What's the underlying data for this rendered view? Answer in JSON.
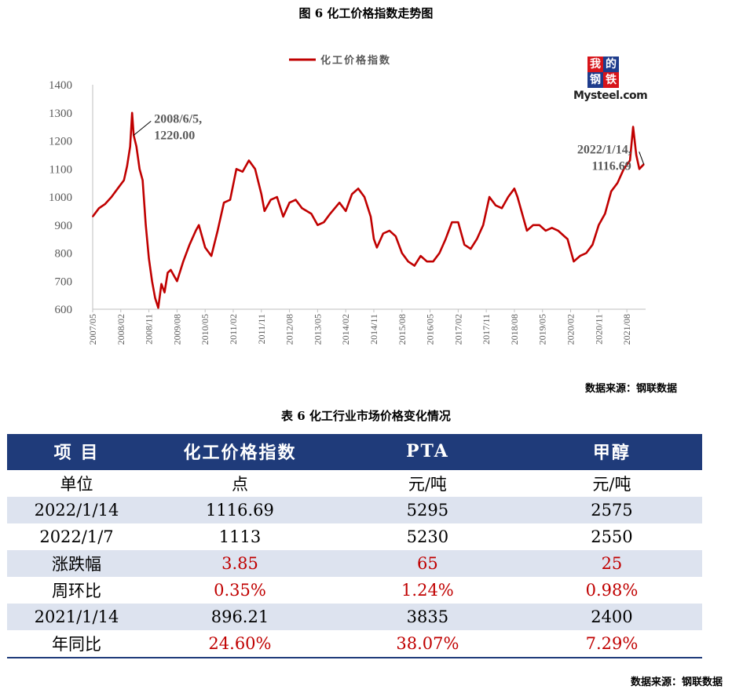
{
  "figure": {
    "title": "图 6 化工价格指数走势图",
    "source": "数据来源：钢联数据",
    "logo": {
      "chars": [
        "我",
        "的",
        "钢",
        "铁"
      ],
      "text": "Mysteel.com",
      "colors": [
        "#d7141a",
        "#1e3c8c"
      ]
    }
  },
  "chart_data": {
    "type": "line",
    "series": [
      {
        "name": "化工价格指数",
        "color": "#c00000",
        "points": [
          [
            "2007-05",
            930
          ],
          [
            "2007-07",
            960
          ],
          [
            "2007-09",
            975
          ],
          [
            "2007-11",
            1000
          ],
          [
            "2008-01",
            1030
          ],
          [
            "2008-03",
            1060
          ],
          [
            "2008-04",
            1110
          ],
          [
            "2008-05",
            1180
          ],
          [
            "2008-05-20",
            1300
          ],
          [
            "2008-06-05",
            1220
          ],
          [
            "2008-07",
            1180
          ],
          [
            "2008-08",
            1100
          ],
          [
            "2008-09",
            1060
          ],
          [
            "2008-10",
            900
          ],
          [
            "2008-11",
            780
          ],
          [
            "2008-12",
            700
          ],
          [
            "2009-01",
            640
          ],
          [
            "2009-02",
            605
          ],
          [
            "2009-03",
            690
          ],
          [
            "2009-04",
            660
          ],
          [
            "2009-05",
            730
          ],
          [
            "2009-06",
            740
          ],
          [
            "2009-07",
            720
          ],
          [
            "2009-08",
            700
          ],
          [
            "2009-10",
            770
          ],
          [
            "2009-12",
            830
          ],
          [
            "2010-02",
            880
          ],
          [
            "2010-03",
            900
          ],
          [
            "2010-05",
            820
          ],
          [
            "2010-07",
            790
          ],
          [
            "2010-09",
            880
          ],
          [
            "2010-11",
            980
          ],
          [
            "2011-01",
            990
          ],
          [
            "2011-03",
            1100
          ],
          [
            "2011-05",
            1090
          ],
          [
            "2011-07",
            1130
          ],
          [
            "2011-09",
            1100
          ],
          [
            "2011-11",
            1010
          ],
          [
            "2011-12",
            950
          ],
          [
            "2012-02",
            990
          ],
          [
            "2012-04",
            1000
          ],
          [
            "2012-06",
            930
          ],
          [
            "2012-08",
            980
          ],
          [
            "2012-10",
            990
          ],
          [
            "2012-12",
            960
          ],
          [
            "2013-03",
            940
          ],
          [
            "2013-05",
            900
          ],
          [
            "2013-07",
            910
          ],
          [
            "2013-09",
            940
          ],
          [
            "2013-12",
            980
          ],
          [
            "2014-02",
            950
          ],
          [
            "2014-04",
            1010
          ],
          [
            "2014-06",
            1030
          ],
          [
            "2014-08",
            1000
          ],
          [
            "2014-10",
            930
          ],
          [
            "2014-11",
            850
          ],
          [
            "2014-12",
            820
          ],
          [
            "2015-02",
            870
          ],
          [
            "2015-04",
            880
          ],
          [
            "2015-06",
            860
          ],
          [
            "2015-08",
            800
          ],
          [
            "2015-10",
            770
          ],
          [
            "2015-12",
            755
          ],
          [
            "2016-02",
            790
          ],
          [
            "2016-04",
            770
          ],
          [
            "2016-06",
            770
          ],
          [
            "2016-08",
            800
          ],
          [
            "2016-10",
            850
          ],
          [
            "2016-12",
            910
          ],
          [
            "2017-02",
            910
          ],
          [
            "2017-04",
            830
          ],
          [
            "2017-06",
            815
          ],
          [
            "2017-08",
            850
          ],
          [
            "2017-10",
            900
          ],
          [
            "2017-12",
            1000
          ],
          [
            "2018-02",
            970
          ],
          [
            "2018-04",
            960
          ],
          [
            "2018-06",
            1000
          ],
          [
            "2018-08",
            1030
          ],
          [
            "2018-09",
            1000
          ],
          [
            "2018-11",
            920
          ],
          [
            "2018-12",
            880
          ],
          [
            "2019-02",
            900
          ],
          [
            "2019-04",
            900
          ],
          [
            "2019-06",
            880
          ],
          [
            "2019-08",
            890
          ],
          [
            "2019-10",
            880
          ],
          [
            "2019-12",
            860
          ],
          [
            "2020-01",
            850
          ],
          [
            "2020-03",
            770
          ],
          [
            "2020-05",
            790
          ],
          [
            "2020-07",
            800
          ],
          [
            "2020-09",
            830
          ],
          [
            "2020-11",
            900
          ],
          [
            "2021-01",
            940
          ],
          [
            "2021-03",
            1020
          ],
          [
            "2021-05",
            1050
          ],
          [
            "2021-07",
            1100
          ],
          [
            "2021-09",
            1130
          ],
          [
            "2021-10",
            1250
          ],
          [
            "2021-11",
            1150
          ],
          [
            "2021-12",
            1100
          ],
          [
            "2022-01-14",
            1116.69
          ]
        ]
      }
    ],
    "x_ticks": [
      "2007/05",
      "2008/02",
      "2008/11",
      "2009/08",
      "2010/05",
      "2011/02",
      "2011/11",
      "2012/08",
      "2013/05",
      "2014/02",
      "2014/11",
      "2015/08",
      "2016/05",
      "2017/02",
      "2017/11",
      "2018/08",
      "2019/05",
      "2020/02",
      "2020/11",
      "2021/08"
    ],
    "y_ticks": [
      600,
      700,
      800,
      900,
      1000,
      1100,
      1200,
      1300,
      1400
    ],
    "ylim": [
      600,
      1400
    ],
    "xlim": [
      "2007-05",
      "2022-02"
    ],
    "legend": "top-center",
    "annotations": [
      {
        "date": "2008-06-05",
        "value": 1220.0,
        "label_lines": [
          "2008/6/5,",
          "1220.00"
        ]
      },
      {
        "date": "2022-01-14",
        "value": 1116.69,
        "label_lines": [
          "2022/1/14,",
          "1116.69"
        ]
      }
    ]
  },
  "table": {
    "title": "表 6 化工行业市场价格变化情况",
    "headers": [
      "项 目",
      "化工价格指数",
      "PTA",
      "甲醇"
    ],
    "rows": [
      {
        "cells": [
          "单位",
          "点",
          "元/吨",
          "元/吨"
        ],
        "shade": false,
        "red": false
      },
      {
        "cells": [
          "2022/1/14",
          "1116.69",
          "5295",
          "2575"
        ],
        "shade": true,
        "red": false
      },
      {
        "cells": [
          "2022/1/7",
          "1113",
          "5230",
          "2550"
        ],
        "shade": false,
        "red": false
      },
      {
        "cells": [
          "涨跌幅",
          "3.85",
          "65",
          "25"
        ],
        "shade": true,
        "red": true
      },
      {
        "cells": [
          "周环比",
          "0.35%",
          "1.24%",
          "0.98%"
        ],
        "shade": false,
        "red": true
      },
      {
        "cells": [
          "2021/1/14",
          "896.21",
          "3835",
          "2400"
        ],
        "shade": true,
        "red": false
      },
      {
        "cells": [
          "年同比",
          "24.60%",
          "38.07%",
          "7.29%"
        ],
        "shade": false,
        "red": true
      }
    ],
    "source": "数据来源：钢联数据"
  }
}
